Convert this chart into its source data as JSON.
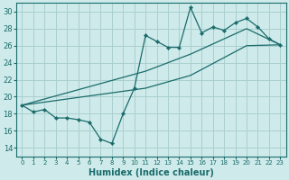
{
  "xlabel": "Humidex (Indice chaleur)",
  "bg_color": "#ceeaea",
  "line_color": "#1a6b6b",
  "grid_color": "#aacfcf",
  "xlim": [
    -0.5,
    23.5
  ],
  "ylim": [
    13,
    31
  ],
  "xticks": [
    0,
    1,
    2,
    3,
    4,
    5,
    6,
    7,
    8,
    9,
    10,
    11,
    12,
    13,
    14,
    15,
    16,
    17,
    18,
    19,
    20,
    21,
    22,
    23
  ],
  "yticks": [
    14,
    16,
    18,
    20,
    22,
    24,
    26,
    28,
    30
  ],
  "series1_x": [
    0,
    1,
    2,
    3,
    4,
    5,
    6,
    7,
    8,
    9,
    10,
    11,
    12,
    13,
    14,
    15,
    16,
    17,
    18,
    19,
    20,
    21,
    22,
    23
  ],
  "series1_y": [
    19.0,
    18.2,
    18.5,
    17.5,
    17.5,
    17.3,
    17.0,
    15.0,
    14.5,
    18.0,
    21.0,
    27.2,
    26.5,
    25.8,
    25.8,
    30.5,
    27.5,
    28.2,
    27.8,
    28.7,
    29.2,
    28.2,
    26.8,
    26.1
  ],
  "series2_x": [
    0,
    23
  ],
  "series2_y": [
    19.0,
    26.1
  ],
  "series3_x": [
    0,
    23
  ],
  "series3_y": [
    19.0,
    26.1
  ],
  "series3_ctrl_x": [
    0,
    11,
    15,
    20,
    23
  ],
  "series3_ctrl_y": [
    19.0,
    23.0,
    25.0,
    28.0,
    26.1
  ],
  "series4_ctrl_x": [
    0,
    11,
    15,
    20,
    23
  ],
  "series4_ctrl_y": [
    19.0,
    21.0,
    22.5,
    26.0,
    26.1
  ]
}
